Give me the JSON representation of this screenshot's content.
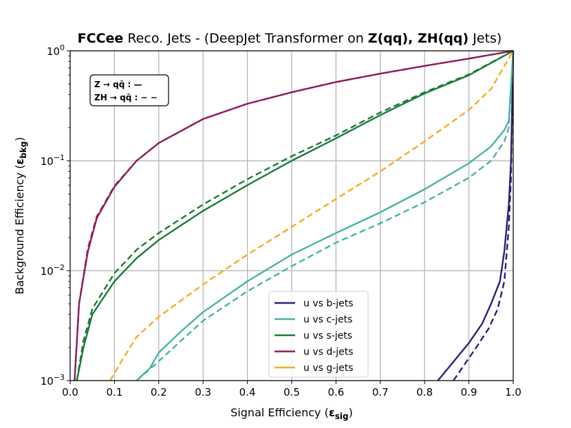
{
  "chart_data": {
    "type": "line",
    "title": {
      "part1": "FCCee",
      "part2": " Reco. Jets - (DeepJet Transformer on ",
      "part3": "Z(qq), ZH(qq)",
      "part4": " Jets)"
    },
    "xlabel": {
      "main": "Signal Efficiency (",
      "greek": "ε",
      "sub": "sig",
      "close": ")"
    },
    "ylabel": {
      "main": "Background Efficiency (",
      "greek": "ε",
      "sub": "bkg",
      "close": ")"
    },
    "xlim": [
      0,
      1
    ],
    "ylim": [
      0.001,
      1
    ],
    "yscale": "log",
    "grid": true,
    "x_ticks": [
      "0.0",
      "0.1",
      "0.2",
      "0.3",
      "0.4",
      "0.5",
      "0.6",
      "0.7",
      "0.8",
      "0.9",
      "1.0"
    ],
    "y_ticks": [
      {
        "value": 0.001,
        "base": "10",
        "exp": "−3"
      },
      {
        "value": 0.01,
        "base": "10",
        "exp": "−2"
      },
      {
        "value": 0.1,
        "base": "10",
        "exp": "−1"
      },
      {
        "value": 1,
        "base": "10",
        "exp": "0"
      }
    ],
    "annotation": {
      "line1": "Z → qq̄ : —",
      "line2": "ZH → qq̄ : − −"
    },
    "legend_position": "lower-right",
    "series": [
      {
        "name": "u vs b-jets",
        "color": "#2c1f7a",
        "Z_qq": [
          [
            0.83,
            0.001
          ],
          [
            0.86,
            0.0014
          ],
          [
            0.9,
            0.0022
          ],
          [
            0.93,
            0.0033
          ],
          [
            0.95,
            0.005
          ],
          [
            0.97,
            0.008
          ],
          [
            0.98,
            0.015
          ],
          [
            0.99,
            0.04
          ],
          [
            0.995,
            0.1
          ],
          [
            1.0,
            1.0
          ]
        ],
        "ZH_qq": [
          [
            0.865,
            0.001
          ],
          [
            0.89,
            0.0014
          ],
          [
            0.92,
            0.0021
          ],
          [
            0.945,
            0.003
          ],
          [
            0.965,
            0.0045
          ],
          [
            0.98,
            0.008
          ],
          [
            0.99,
            0.025
          ],
          [
            0.995,
            0.07
          ],
          [
            1.0,
            1.0
          ]
        ]
      },
      {
        "name": "u vs c-jets",
        "color": "#46b4a4",
        "Z_qq": [
          [
            0.15,
            0.001
          ],
          [
            0.18,
            0.0013
          ],
          [
            0.2,
            0.0018
          ],
          [
            0.25,
            0.0028
          ],
          [
            0.3,
            0.0042
          ],
          [
            0.4,
            0.008
          ],
          [
            0.5,
            0.014
          ],
          [
            0.6,
            0.022
          ],
          [
            0.7,
            0.034
          ],
          [
            0.8,
            0.055
          ],
          [
            0.9,
            0.095
          ],
          [
            0.95,
            0.135
          ],
          [
            0.98,
            0.19
          ],
          [
            0.99,
            0.23
          ],
          [
            1.0,
            1.0
          ]
        ],
        "ZH_qq": [
          [
            0.15,
            0.001
          ],
          [
            0.2,
            0.0015
          ],
          [
            0.25,
            0.0023
          ],
          [
            0.3,
            0.0035
          ],
          [
            0.4,
            0.0065
          ],
          [
            0.5,
            0.011
          ],
          [
            0.6,
            0.018
          ],
          [
            0.7,
            0.027
          ],
          [
            0.8,
            0.042
          ],
          [
            0.9,
            0.07
          ],
          [
            0.95,
            0.1
          ],
          [
            0.98,
            0.15
          ],
          [
            0.99,
            0.2
          ],
          [
            1.0,
            1.0
          ]
        ]
      },
      {
        "name": "u vs s-jets",
        "color": "#1c7a38",
        "Z_qq": [
          [
            0.015,
            0.001
          ],
          [
            0.03,
            0.002
          ],
          [
            0.05,
            0.004
          ],
          [
            0.1,
            0.008
          ],
          [
            0.15,
            0.013
          ],
          [
            0.2,
            0.019
          ],
          [
            0.3,
            0.035
          ],
          [
            0.4,
            0.06
          ],
          [
            0.5,
            0.1
          ],
          [
            0.6,
            0.16
          ],
          [
            0.7,
            0.26
          ],
          [
            0.8,
            0.41
          ],
          [
            0.9,
            0.6
          ],
          [
            1.0,
            1.0
          ]
        ],
        "ZH_qq": [
          [
            0.015,
            0.001
          ],
          [
            0.03,
            0.0023
          ],
          [
            0.05,
            0.0045
          ],
          [
            0.1,
            0.0095
          ],
          [
            0.15,
            0.0155
          ],
          [
            0.2,
            0.022
          ],
          [
            0.3,
            0.04
          ],
          [
            0.4,
            0.068
          ],
          [
            0.5,
            0.11
          ],
          [
            0.6,
            0.17
          ],
          [
            0.7,
            0.275
          ],
          [
            0.8,
            0.42
          ],
          [
            0.9,
            0.61
          ],
          [
            1.0,
            1.0
          ]
        ]
      },
      {
        "name": "u vs d-jets",
        "color": "#8a1f5c",
        "Z_qq": [
          [
            0.01,
            0.001
          ],
          [
            0.02,
            0.005
          ],
          [
            0.04,
            0.015
          ],
          [
            0.06,
            0.03
          ],
          [
            0.1,
            0.058
          ],
          [
            0.15,
            0.1
          ],
          [
            0.2,
            0.145
          ],
          [
            0.3,
            0.24
          ],
          [
            0.4,
            0.33
          ],
          [
            0.5,
            0.42
          ],
          [
            0.6,
            0.52
          ],
          [
            0.7,
            0.62
          ],
          [
            0.8,
            0.73
          ],
          [
            0.9,
            0.85
          ],
          [
            1.0,
            1.0
          ]
        ],
        "ZH_qq": [
          [
            0.01,
            0.001
          ],
          [
            0.02,
            0.005
          ],
          [
            0.04,
            0.016
          ],
          [
            0.06,
            0.031
          ],
          [
            0.1,
            0.059
          ],
          [
            0.15,
            0.1
          ],
          [
            0.2,
            0.145
          ],
          [
            0.3,
            0.24
          ],
          [
            0.4,
            0.33
          ],
          [
            0.5,
            0.42
          ],
          [
            0.6,
            0.52
          ],
          [
            0.7,
            0.62
          ],
          [
            0.8,
            0.73
          ],
          [
            0.9,
            0.85
          ],
          [
            1.0,
            1.0
          ]
        ]
      },
      {
        "name": "u vs g-jets",
        "color": "#f9ab1b",
        "Z_qq": [],
        "ZH_qq": [
          [
            0.09,
            0.001
          ],
          [
            0.12,
            0.0016
          ],
          [
            0.15,
            0.0025
          ],
          [
            0.2,
            0.0038
          ],
          [
            0.3,
            0.0075
          ],
          [
            0.4,
            0.014
          ],
          [
            0.5,
            0.025
          ],
          [
            0.6,
            0.045
          ],
          [
            0.7,
            0.08
          ],
          [
            0.8,
            0.15
          ],
          [
            0.9,
            0.29
          ],
          [
            0.95,
            0.45
          ],
          [
            1.0,
            1.0
          ]
        ]
      }
    ]
  }
}
